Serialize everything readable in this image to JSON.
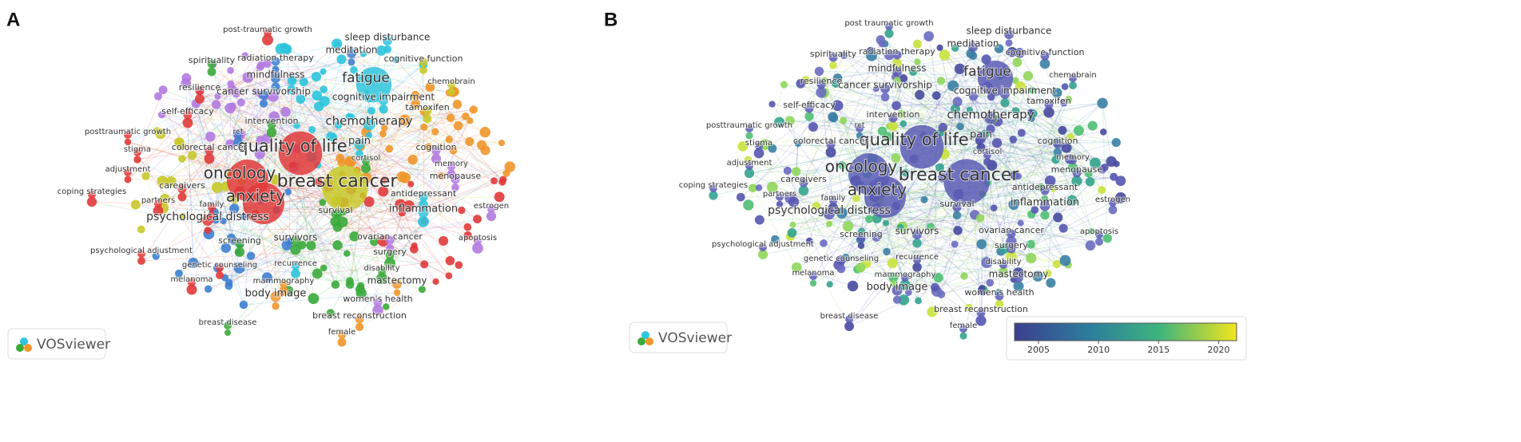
{
  "panels": [
    {
      "label": "A",
      "logo": "VOSviewer",
      "nodes": [
        "post-traumatic growth",
        "sleep disturbance",
        "meditation",
        "spirituality",
        "radiation therapy",
        "cognitive function",
        "resilience",
        "mindfulness",
        "fatigue",
        "chemobrain",
        "cancer survivorship",
        "cognitive impairment",
        "self-efficacy",
        "tamoxifen",
        "chemotherapy",
        "intervention",
        "posttraumatic growth",
        "rct",
        "pain",
        "quality of life",
        "colorectal cancer",
        "cognition",
        "stigma",
        "cortisol",
        "memory",
        "adjustment",
        "oncology",
        "breast cancer",
        "menopause",
        "coping strategies",
        "caregivers",
        "anxiety",
        "antidepressant",
        "partners",
        "family",
        "estrogen",
        "inflammation",
        "survival",
        "psychological distress",
        "apoptosis",
        "screening",
        "survivors",
        "ovarian cancer",
        "psychological adjustment",
        "surgery",
        "genetic counseling",
        "recurrence",
        "disability",
        "melanoma",
        "mammography",
        "mastectomy",
        "body image",
        "women's health",
        "breast reconstruction",
        "breast disease",
        "female"
      ]
    },
    {
      "label": "B",
      "logo": "VOSviewer",
      "nodes": [
        "post traumatic growth",
        "sleep disturbance",
        "meditation",
        "spirituality",
        "radiation therapy",
        "cognitive function",
        "resilience",
        "mindfulness",
        "fatigue",
        "chemobrain",
        "cancer survivorship",
        "cognitive impairment",
        "self-efficacy",
        "tamoxifen",
        "chemotherapy",
        "intervention",
        "posttraumatic growth",
        "rct",
        "pain",
        "quality of life",
        "colorectal cancer",
        "cognition",
        "stigma",
        "cortisol",
        "memory",
        "adjustment",
        "oncology",
        "breast cancer",
        "menopause",
        "coping strategies",
        "caregivers",
        "anxiety",
        "antidepressant",
        "partners",
        "family",
        "estrogen",
        "inflammation",
        "survival",
        "psychological distress",
        "apoptosis",
        "screening",
        "survivors",
        "ovarian cancer",
        "psychological adjustment",
        "surgery",
        "genetic counseling",
        "recurrence",
        "disability",
        "melanoma",
        "mammography",
        "mastectomy",
        "body image",
        "women's health",
        "breast reconstruction",
        "breast disease",
        "female"
      ],
      "colorbar": {
        "range": [
          2003,
          2021.5
        ],
        "ticks": [
          2005,
          2010,
          2015,
          2020
        ]
      }
    }
  ]
}
